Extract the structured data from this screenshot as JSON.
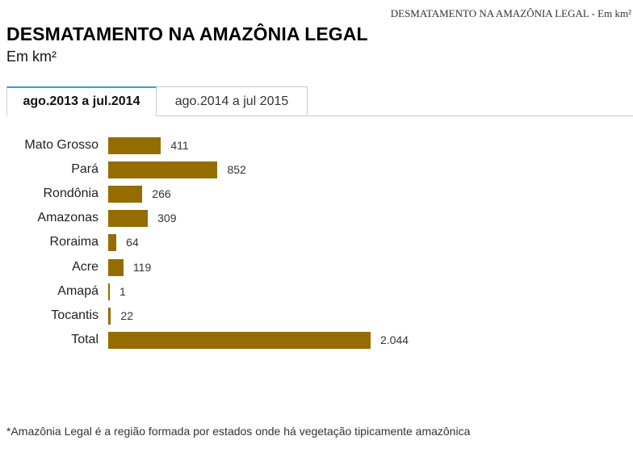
{
  "header": {
    "caption": "DESMATAMENTO NA AMAZÔNIA LEGAL - Em km²",
    "title": "DESMATAMENTO NA AMAZÔNIA LEGAL",
    "subtitle": "Em km²"
  },
  "tabs": [
    {
      "label": "ago.2013 a jul.2014",
      "active": true
    },
    {
      "label": "ago.2014 a jul 2015",
      "active": false
    }
  ],
  "colors": {
    "bar": "#956c00",
    "active_tab_accent": "#29a3d9"
  },
  "chart_data": {
    "type": "bar",
    "orientation": "horizontal",
    "title": "DESMATAMENTO NA AMAZÔNIA LEGAL",
    "subtitle": "Em km²",
    "period": "ago.2013 a jul.2014",
    "categories": [
      "Mato Grosso",
      "Pará",
      "Rondônia",
      "Amazonas",
      "Roraima",
      "Acre",
      "Amapá",
      "Tocantis",
      "Total"
    ],
    "values": [
      411,
      852,
      266,
      309,
      64,
      119,
      1,
      22,
      2044
    ],
    "value_labels": [
      "411",
      "852",
      "266",
      "309",
      "64",
      "119",
      "1",
      "22",
      "2.044"
    ],
    "xlabel": "",
    "ylabel": "",
    "unit": "km²",
    "xlim": [
      0,
      2044
    ],
    "grid": false,
    "legend": "none"
  },
  "footnote": "*Amazônia Legal é a região formada por estados onde há vegetação tipicamente amazônica"
}
